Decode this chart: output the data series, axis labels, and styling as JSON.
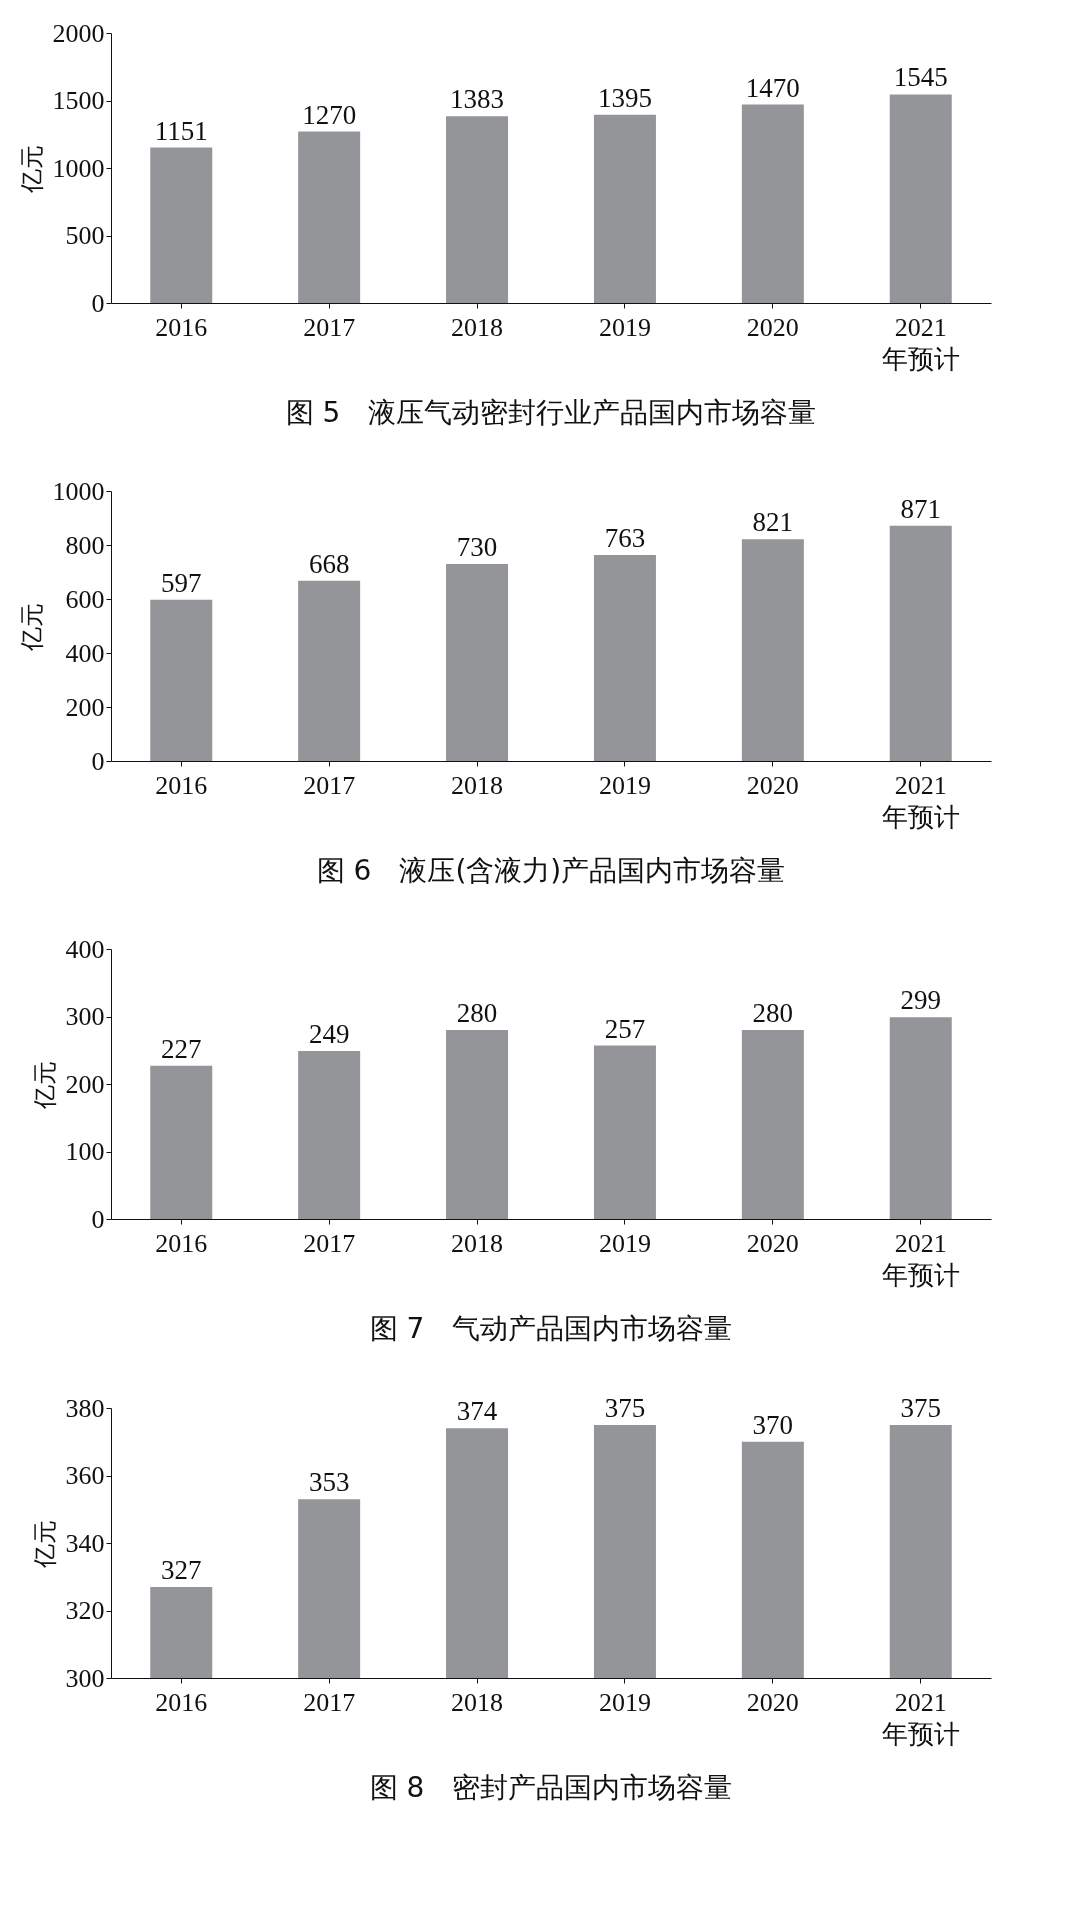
{
  "chart_data": [
    {
      "type": "bar",
      "title": "图 5　液压气动密封行业产品国内市场容量",
      "ylabel": "亿元",
      "categories": [
        "2016",
        "2017",
        "2018",
        "2019",
        "2020",
        "2021\n年预计"
      ],
      "values": [
        1151,
        1270,
        1383,
        1395,
        1470,
        1545
      ],
      "color": "#939598",
      "ylim": [
        0,
        2000
      ],
      "yticks": [
        0,
        500,
        1000,
        1500,
        2000
      ],
      "grid": false,
      "data_labels": true
    },
    {
      "type": "bar",
      "title": "图 6　液压(含液力)产品国内市场容量",
      "ylabel": "亿元",
      "categories": [
        "2016",
        "2017",
        "2018",
        "2019",
        "2020",
        "2021\n年预计"
      ],
      "values": [
        597,
        668,
        730,
        763,
        821,
        871
      ],
      "color": "#939598",
      "ylim": [
        0,
        1000
      ],
      "yticks": [
        0,
        200,
        400,
        600,
        800,
        1000
      ],
      "grid": false,
      "data_labels": true
    },
    {
      "type": "bar",
      "title": "图 7　气动产品国内市场容量",
      "ylabel": "亿元",
      "categories": [
        "2016",
        "2017",
        "2018",
        "2019",
        "2020",
        "2021\n年预计"
      ],
      "values": [
        227,
        249,
        280,
        257,
        280,
        299
      ],
      "color": "#939598",
      "ylim": [
        0,
        400
      ],
      "yticks": [
        0,
        100,
        200,
        300,
        400
      ],
      "grid": false,
      "data_labels": true
    },
    {
      "type": "bar",
      "title": "图 8　密封产品国内市场容量",
      "ylabel": "亿元",
      "categories": [
        "2016",
        "2017",
        "2018",
        "2019",
        "2020",
        "2021\n年预计"
      ],
      "values": [
        327,
        353,
        374,
        375,
        370,
        375
      ],
      "color": "#939598",
      "ylim": [
        300,
        380
      ],
      "yticks": [
        300,
        320,
        340,
        360,
        380
      ],
      "grid": false,
      "data_labels": true
    }
  ]
}
